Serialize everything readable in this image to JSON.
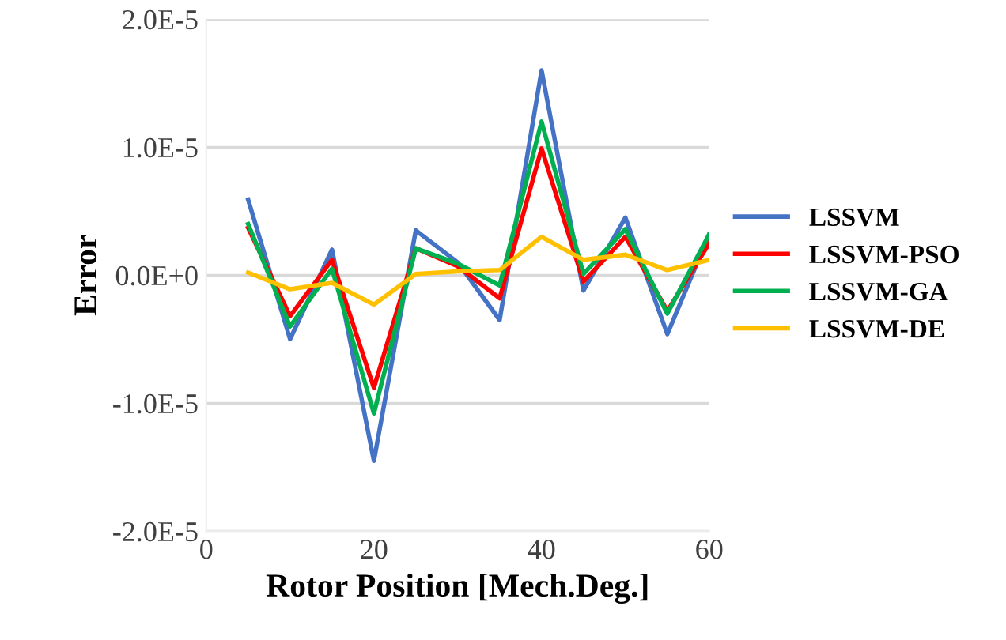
{
  "chart_data": {
    "type": "line",
    "xlabel": "Rotor Position [Mech.Deg.]",
    "ylabel": "Error",
    "x": [
      5,
      10,
      15,
      20,
      25,
      30,
      35,
      40,
      45,
      50,
      55,
      60
    ],
    "series": [
      {
        "name": "LSSVM",
        "color": "#4472c4",
        "values": [
          5.9e-06,
          -5e-06,
          2e-06,
          -1.45e-05,
          3.5e-06,
          1e-06,
          -3.5e-06,
          1.6e-05,
          -1.2e-06,
          4.5e-06,
          -4.6e-06,
          3.2e-06
        ]
      },
      {
        "name": "LSSVM-PSO",
        "color": "#ff0000",
        "values": [
          3.7e-06,
          -3.2e-06,
          1.2e-06,
          -8.8e-06,
          2.1e-06,
          7e-07,
          -1.8e-06,
          9.9e-06,
          -5e-07,
          3e-06,
          -2.8e-06,
          2.5e-06
        ]
      },
      {
        "name": "LSSVM-GA",
        "color": "#00b050",
        "values": [
          4e-06,
          -4e-06,
          5e-07,
          -1.08e-05,
          2.1e-06,
          9e-07,
          -8e-07,
          1.2e-05,
          1e-07,
          3.6e-06,
          -3e-06,
          3.2e-06
        ]
      },
      {
        "name": "LSSVM-DE",
        "color": "#ffc000",
        "values": [
          2e-07,
          -1.1e-06,
          -6e-07,
          -2.3e-06,
          1e-07,
          3e-07,
          4e-07,
          3e-06,
          1.2e-06,
          1.6e-06,
          4e-07,
          1.2e-06
        ]
      }
    ],
    "xlim": [
      0,
      60
    ],
    "xticks": [
      0,
      20,
      40,
      60
    ],
    "ylim": [
      -2e-05,
      2e-05
    ],
    "yticks": [
      {
        "value": -2e-05,
        "label": "-2.0E-5"
      },
      {
        "value": -1e-05,
        "label": "-1.0E-5"
      },
      {
        "value": 0,
        "label": "0.0E+0"
      },
      {
        "value": 1e-05,
        "label": "1.0E-5"
      },
      {
        "value": 2e-05,
        "label": "2.0E-5"
      }
    ],
    "grid": "y",
    "legend": "right",
    "marker": "none",
    "line_style": "solid"
  }
}
